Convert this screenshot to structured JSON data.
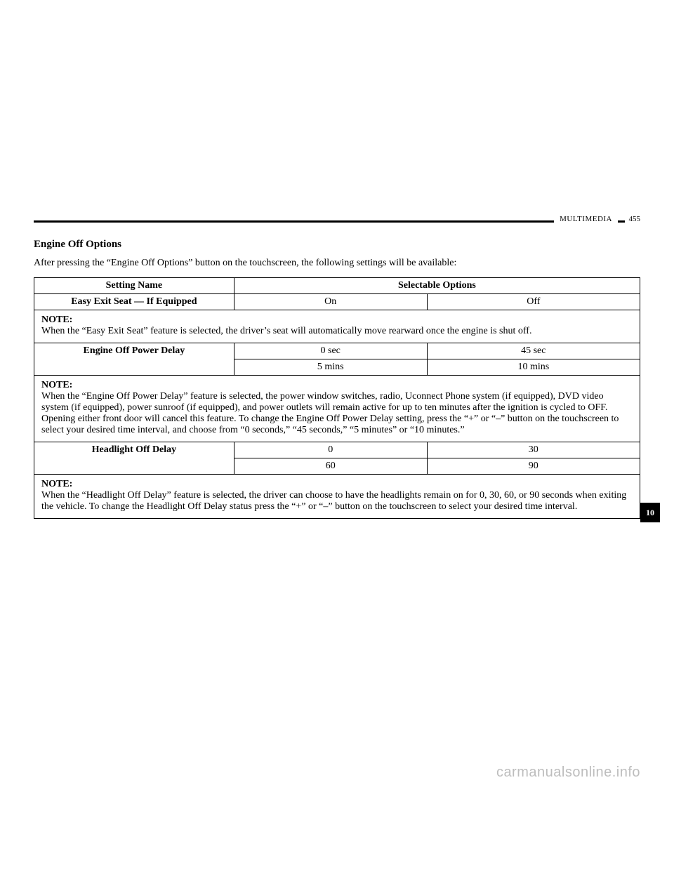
{
  "header": {
    "section": "MULTIMEDIA",
    "page": "455"
  },
  "section_title": "Engine Off Options",
  "intro": "After pressing the “Engine Off Options” button on the touchscreen, the following settings will be available:",
  "table": {
    "columns": {
      "name": "Setting Name",
      "options": "Selectable Options"
    },
    "rows": [
      {
        "name": "Easy Exit Seat — If Equipped",
        "cells": [
          [
            "On",
            "Off"
          ]
        ],
        "note_label": "NOTE:",
        "note": "When the “Easy Exit Seat” feature is selected, the driver’s seat will automatically move rearward once the engine is shut off."
      },
      {
        "name": "Engine Off Power Delay",
        "cells": [
          [
            "0 sec",
            "45 sec"
          ],
          [
            "5 mins",
            "10 mins"
          ]
        ],
        "note_label": "NOTE:",
        "note": "When the “Engine Off Power Delay” feature is selected, the power window switches, radio, Uconnect Phone system (if equipped), DVD video system (if equipped), power sunroof (if equipped), and power outlets will remain active for up to ten minutes after the ignition is cycled to OFF. Opening either front door will cancel this feature. To change the Engine Off Power Delay setting, press the “+” or “–” button on the touchscreen to select your desired time interval, and choose from “0 seconds,” “45 seconds,” “5 minutes” or “10 minutes.”"
      },
      {
        "name": "Headlight Off Delay",
        "cells": [
          [
            "0",
            "30"
          ],
          [
            "60",
            "90"
          ]
        ],
        "note_label": "NOTE:",
        "note": "When the “Headlight Off Delay” feature is selected, the driver can choose to have the headlights remain on for 0, 30, 60, or 90 seconds when exiting the vehicle. To change the Headlight Off Delay status press the “+” or “–” button on the touchscreen to select your desired time interval."
      }
    ]
  },
  "side_tab": "10",
  "watermark": "carmanualsonline.info"
}
